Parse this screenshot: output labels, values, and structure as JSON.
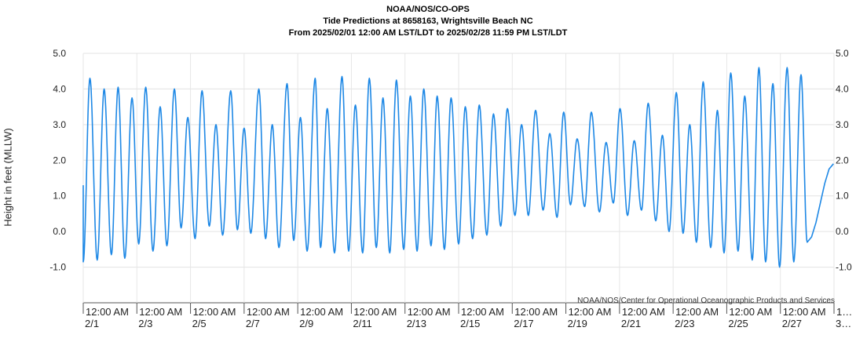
{
  "header": {
    "line1": "NOAA/NOS/CO-OPS",
    "line2": "Tide Predictions at 8658163, Wrightsville Beach NC",
    "line3": "From 2025/02/01 12:00 AM LST/LDT to 2025/02/28 11:59 PM LST/LDT"
  },
  "credit": "NOAA/NOS/Center for Operational Oceanographic Products and Services",
  "chart_data": {
    "type": "line",
    "title": "Tide Predictions at 8658163, Wrightsville Beach NC",
    "ylabel": "Height in feet (MLLW)",
    "xlabel": "",
    "ylim": [
      -2.0,
      5.0
    ],
    "y_ticks": [
      "5.0",
      "4.0",
      "3.0",
      "2.0",
      "1.0",
      "0.0",
      "-1.0"
    ],
    "y_tick_values": [
      5,
      4,
      3,
      2,
      1,
      0,
      -1
    ],
    "x_tick_labels": [
      {
        "time": "12:00 AM",
        "date": "2/1"
      },
      {
        "time": "12:00 AM",
        "date": "2/3"
      },
      {
        "time": "12:00 AM",
        "date": "2/5"
      },
      {
        "time": "12:00 AM",
        "date": "2/7"
      },
      {
        "time": "12:00 AM",
        "date": "2/9"
      },
      {
        "time": "12:00 AM",
        "date": "2/11"
      },
      {
        "time": "12:00 AM",
        "date": "2/13"
      },
      {
        "time": "12:00 AM",
        "date": "2/15"
      },
      {
        "time": "12:00 AM",
        "date": "2/17"
      },
      {
        "time": "12:00 AM",
        "date": "2/19"
      },
      {
        "time": "12:00 AM",
        "date": "2/21"
      },
      {
        "time": "12:00 AM",
        "date": "2/23"
      },
      {
        "time": "12:00 AM",
        "date": "2/25"
      },
      {
        "time": "12:00 AM",
        "date": "2/27"
      },
      {
        "time": "1…",
        "date": "3…"
      }
    ],
    "x_tick_days": [
      1,
      3,
      5,
      7,
      9,
      11,
      13,
      15,
      17,
      19,
      21,
      23,
      25,
      27,
      29
    ],
    "series_color": "#1e88e5",
    "grid": true,
    "series": [
      {
        "highs": [
          [
            1.25,
            4.3
          ],
          [
            1.78,
            4.0
          ],
          [
            2.3,
            4.05
          ],
          [
            2.82,
            3.75
          ],
          [
            3.33,
            4.05
          ],
          [
            3.87,
            3.5
          ],
          [
            4.4,
            4.0
          ],
          [
            4.9,
            3.2
          ],
          [
            5.43,
            3.95
          ],
          [
            5.95,
            3.0
          ],
          [
            6.5,
            3.95
          ],
          [
            7.0,
            2.9
          ],
          [
            7.55,
            4.0
          ],
          [
            8.05,
            3.0
          ],
          [
            8.6,
            4.15
          ],
          [
            9.1,
            3.2
          ],
          [
            9.65,
            4.3
          ],
          [
            10.1,
            3.45
          ],
          [
            10.65,
            4.35
          ],
          [
            11.15,
            3.55
          ],
          [
            11.67,
            4.3
          ],
          [
            12.18,
            3.75
          ],
          [
            12.68,
            4.25
          ],
          [
            13.2,
            3.8
          ],
          [
            13.7,
            4.0
          ],
          [
            14.2,
            3.8
          ],
          [
            14.72,
            3.75
          ],
          [
            15.25,
            3.5
          ],
          [
            15.77,
            3.55
          ],
          [
            16.3,
            3.3
          ],
          [
            16.82,
            3.45
          ],
          [
            17.35,
            3.0
          ],
          [
            17.87,
            3.4
          ],
          [
            18.4,
            2.75
          ],
          [
            18.92,
            3.35
          ],
          [
            19.42,
            2.6
          ],
          [
            19.95,
            3.35
          ],
          [
            20.5,
            2.5
          ],
          [
            21.02,
            3.45
          ],
          [
            21.55,
            2.55
          ],
          [
            22.07,
            3.6
          ],
          [
            22.6,
            2.7
          ],
          [
            23.12,
            3.9
          ],
          [
            23.62,
            3.0
          ],
          [
            24.12,
            4.2
          ],
          [
            24.65,
            3.4
          ],
          [
            25.15,
            4.45
          ],
          [
            25.67,
            3.8
          ],
          [
            26.2,
            4.6
          ],
          [
            26.72,
            4.15
          ],
          [
            27.25,
            4.6
          ],
          [
            27.77,
            4.4
          ]
        ],
        "lows": [
          [
            1.0,
            -0.85
          ],
          [
            1.52,
            -0.8
          ],
          [
            2.05,
            -0.65
          ],
          [
            2.55,
            -0.75
          ],
          [
            3.07,
            -0.35
          ],
          [
            3.6,
            -0.55
          ],
          [
            4.12,
            -0.4
          ],
          [
            4.65,
            0.1
          ],
          [
            5.17,
            -0.2
          ],
          [
            5.7,
            0.15
          ],
          [
            6.2,
            -0.1
          ],
          [
            6.75,
            0.05
          ],
          [
            7.25,
            -0.05
          ],
          [
            7.8,
            -0.2
          ],
          [
            8.3,
            -0.45
          ],
          [
            8.85,
            -0.25
          ],
          [
            9.35,
            -0.55
          ],
          [
            9.85,
            -0.45
          ],
          [
            10.37,
            -0.6
          ],
          [
            10.9,
            -0.55
          ],
          [
            11.42,
            -0.6
          ],
          [
            11.93,
            -0.45
          ],
          [
            12.43,
            -0.6
          ],
          [
            12.95,
            -0.5
          ],
          [
            13.45,
            -0.55
          ],
          [
            13.97,
            -0.4
          ],
          [
            14.47,
            -0.5
          ],
          [
            15.0,
            -0.35
          ],
          [
            15.52,
            -0.2
          ],
          [
            16.05,
            -0.1
          ],
          [
            16.57,
            0.15
          ],
          [
            17.1,
            0.45
          ],
          [
            17.6,
            0.45
          ],
          [
            18.15,
            0.6
          ],
          [
            18.67,
            0.4
          ],
          [
            19.17,
            0.75
          ],
          [
            19.7,
            0.7
          ],
          [
            20.25,
            0.55
          ],
          [
            20.77,
            0.8
          ],
          [
            21.3,
            0.45
          ],
          [
            21.82,
            0.6
          ],
          [
            22.35,
            0.3
          ],
          [
            22.85,
            0.0
          ],
          [
            23.37,
            -0.05
          ],
          [
            23.87,
            -0.3
          ],
          [
            24.4,
            -0.45
          ],
          [
            24.9,
            -0.6
          ],
          [
            25.42,
            -0.55
          ],
          [
            25.95,
            -0.8
          ],
          [
            26.45,
            -0.85
          ],
          [
            26.97,
            -1.0
          ],
          [
            27.5,
            -0.85
          ],
          [
            28.0,
            -0.3
          ]
        ]
      }
    ]
  }
}
